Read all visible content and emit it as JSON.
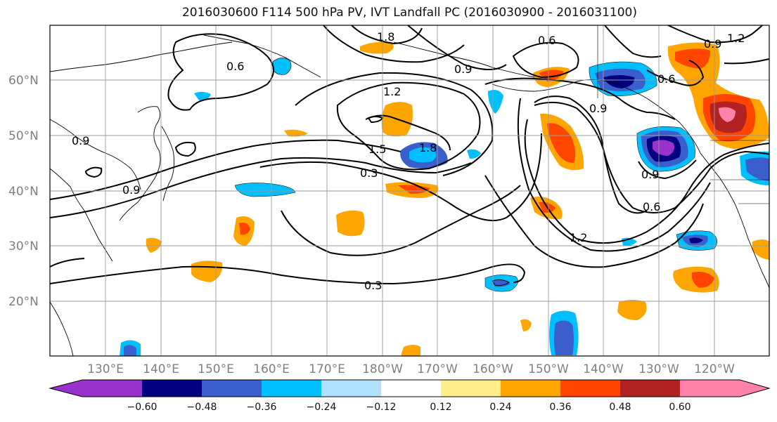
{
  "map": {
    "title": "2016030600 F114 500 hPa PV, IVT Landfall PC (2016030900 - 2016031100)",
    "lat_labels": [
      "60°N",
      "50°N",
      "40°N",
      "30°N",
      "20°N"
    ],
    "lon_labels": [
      "130°E",
      "140°E",
      "150°E",
      "160°E",
      "170°E",
      "180°W",
      "170°W",
      "160°W",
      "150°W",
      "140°W",
      "130°W",
      "120°W"
    ],
    "contour_labels": [
      "1.8",
      "0.6",
      "0.9",
      "1.2",
      "0.6",
      "0.9",
      "0.6",
      "0.9",
      "1.2",
      "1.5",
      "1.8",
      "0.3",
      "0.9",
      "0.9",
      "0.6",
      "1.2",
      "0.9",
      "0.3"
    ],
    "colorbar": {
      "tick_labels": [
        "−0.60",
        "−0.48",
        "−0.36",
        "−0.24",
        "−0.12",
        "0.12",
        "0.24",
        "0.36",
        "0.48",
        "0.60"
      ],
      "colors": [
        "#9932cc",
        "#000080",
        "#3a5fcd",
        "#00bfff",
        "#b0e2ff",
        "#ffffff",
        "#ffec8b",
        "#ffa500",
        "#ff4500",
        "#b22222",
        "#ff82ab"
      ]
    }
  }
}
